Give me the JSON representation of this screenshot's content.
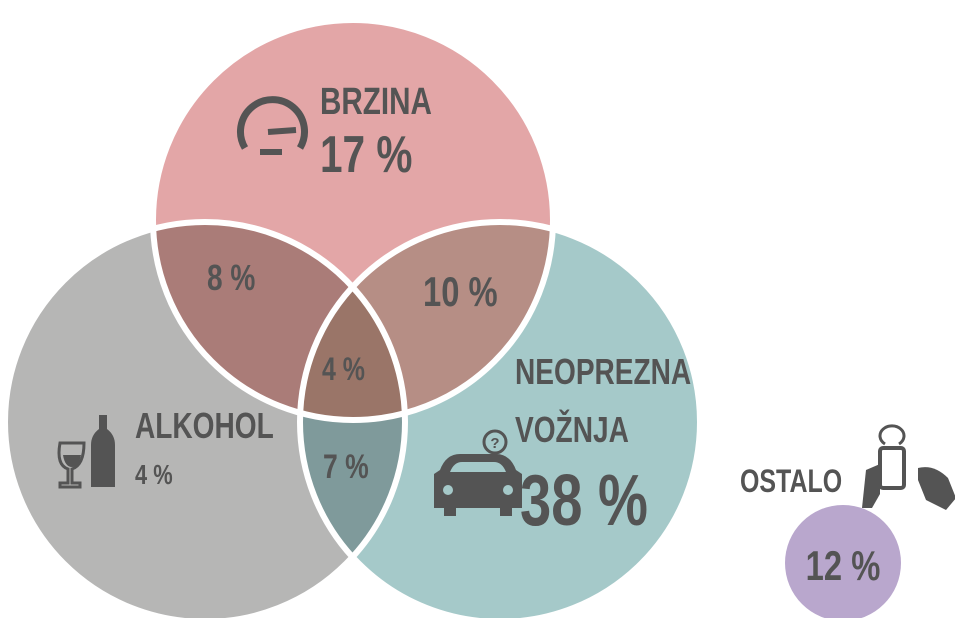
{
  "sets": [
    {
      "label": [
        "BRZINA"
      ],
      "value": "17 %"
    },
    {
      "label": [
        "ALKOHOL"
      ],
      "value": "4 %"
    },
    {
      "label": [
        "NEOPREZNA",
        "VOŽNJA"
      ],
      "value": "38 %"
    }
  ],
  "intersections": {
    "brzina_alkohol": "8 %",
    "brzina_neoprezna": "10 %",
    "alkohol_neoprezna": "7 %",
    "all": "4 %"
  },
  "other": {
    "label": "OSTALO",
    "value": "12 %"
  }
}
